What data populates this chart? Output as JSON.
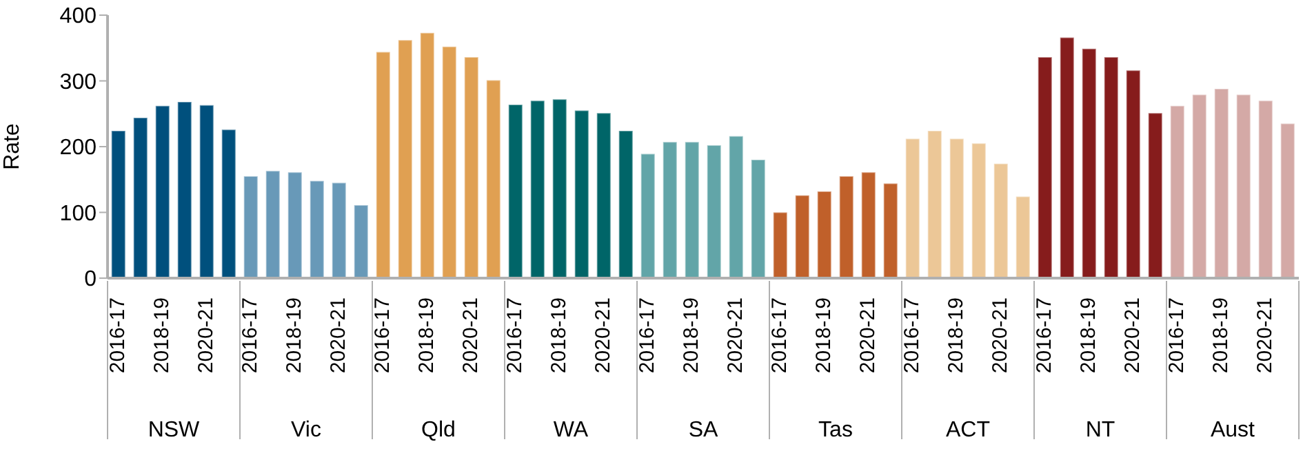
{
  "chart_data": {
    "type": "bar",
    "ylabel": "Rate",
    "ylim": [
      0,
      400
    ],
    "yticks": [
      0,
      100,
      200,
      300,
      400
    ],
    "grid": false,
    "annotations": [
      "NSW",
      "Vic",
      "Qld",
      "WA",
      "SA",
      "Tas",
      "ACT",
      "NT",
      "Aust"
    ],
    "categories": [
      "2016-17",
      null,
      "2018-19",
      null,
      "2020-21",
      null,
      "2016-17",
      null,
      "2018-19",
      null,
      "2020-21",
      null,
      "2016-17",
      null,
      "2018-19",
      null,
      "2020-21",
      null,
      "2016-17",
      null,
      "2018-19",
      null,
      "2020-21",
      null,
      "2016-17",
      null,
      "2018-19",
      null,
      "2020-21",
      null,
      "2016-17",
      null,
      "2018-19",
      null,
      "2020-21",
      null,
      "2016-17",
      null,
      "2018-19",
      null,
      "2020-21",
      null,
      "2016-17",
      null,
      "2018-19",
      null,
      "2020-21",
      null,
      "2016-17",
      null,
      "2018-19",
      null,
      "2020-21",
      null
    ],
    "series": [
      {
        "color": "#00507d",
        "values": [
          224,
          244,
          262,
          268,
          263,
          226,
          null,
          null,
          null,
          null,
          null,
          null,
          null,
          null,
          null,
          null,
          null,
          null,
          null,
          null,
          null,
          null,
          null,
          null,
          null,
          null,
          null,
          null,
          null,
          null,
          null,
          null,
          null,
          null,
          null,
          null,
          null,
          null,
          null,
          null,
          null,
          null,
          null,
          null,
          null,
          null,
          null,
          null,
          null,
          null,
          null,
          null,
          null,
          null
        ]
      },
      {
        "color": "#6899b8",
        "values": [
          null,
          null,
          null,
          null,
          null,
          null,
          155,
          163,
          161,
          148,
          145,
          111,
          null,
          null,
          null,
          null,
          null,
          null,
          null,
          null,
          null,
          null,
          null,
          null,
          null,
          null,
          null,
          null,
          null,
          null,
          null,
          null,
          null,
          null,
          null,
          null,
          null,
          null,
          null,
          null,
          null,
          null,
          null,
          null,
          null,
          null,
          null,
          null,
          null,
          null,
          null,
          null,
          null,
          null
        ]
      },
      {
        "color": "#e0a052",
        "values": [
          null,
          null,
          null,
          null,
          null,
          null,
          null,
          null,
          null,
          null,
          null,
          null,
          344,
          362,
          373,
          352,
          336,
          301,
          null,
          null,
          null,
          null,
          null,
          null,
          null,
          null,
          null,
          null,
          null,
          null,
          null,
          null,
          null,
          null,
          null,
          null,
          null,
          null,
          null,
          null,
          null,
          null,
          null,
          null,
          null,
          null,
          null,
          null,
          null,
          null,
          null,
          null,
          null,
          null
        ]
      },
      {
        "color": "#006568",
        "values": [
          null,
          null,
          null,
          null,
          null,
          null,
          null,
          null,
          null,
          null,
          null,
          null,
          null,
          null,
          null,
          null,
          null,
          null,
          264,
          270,
          272,
          255,
          251,
          224,
          null,
          null,
          null,
          null,
          null,
          null,
          null,
          null,
          null,
          null,
          null,
          null,
          null,
          null,
          null,
          null,
          null,
          null,
          null,
          null,
          null,
          null,
          null,
          null,
          null,
          null,
          null,
          null,
          null,
          null
        ]
      },
      {
        "color": "#62a5a8",
        "values": [
          null,
          null,
          null,
          null,
          null,
          null,
          null,
          null,
          null,
          null,
          null,
          null,
          null,
          null,
          null,
          null,
          null,
          null,
          null,
          null,
          null,
          null,
          null,
          null,
          189,
          207,
          207,
          202,
          216,
          180,
          null,
          null,
          null,
          null,
          null,
          null,
          null,
          null,
          null,
          null,
          null,
          null,
          null,
          null,
          null,
          null,
          null,
          null,
          null,
          null,
          null,
          null,
          null,
          null
        ]
      },
      {
        "color": "#c0602a",
        "values": [
          null,
          null,
          null,
          null,
          null,
          null,
          null,
          null,
          null,
          null,
          null,
          null,
          null,
          null,
          null,
          null,
          null,
          null,
          null,
          null,
          null,
          null,
          null,
          null,
          null,
          null,
          null,
          null,
          null,
          null,
          100,
          126,
          132,
          155,
          161,
          144,
          null,
          null,
          null,
          null,
          null,
          null,
          null,
          null,
          null,
          null,
          null,
          null,
          null,
          null,
          null,
          null,
          null,
          null
        ]
      },
      {
        "color": "#ecc797",
        "values": [
          null,
          null,
          null,
          null,
          null,
          null,
          null,
          null,
          null,
          null,
          null,
          null,
          null,
          null,
          null,
          null,
          null,
          null,
          null,
          null,
          null,
          null,
          null,
          null,
          null,
          null,
          null,
          null,
          null,
          null,
          null,
          null,
          null,
          null,
          null,
          null,
          212,
          224,
          212,
          205,
          174,
          124,
          null,
          null,
          null,
          null,
          null,
          null,
          null,
          null,
          null,
          null,
          null,
          null
        ]
      },
      {
        "color": "#861c1c",
        "values": [
          null,
          null,
          null,
          null,
          null,
          null,
          null,
          null,
          null,
          null,
          null,
          null,
          null,
          null,
          null,
          null,
          null,
          null,
          null,
          null,
          null,
          null,
          null,
          null,
          null,
          null,
          null,
          null,
          null,
          null,
          null,
          null,
          null,
          null,
          null,
          null,
          null,
          null,
          null,
          null,
          null,
          null,
          336,
          366,
          349,
          336,
          316,
          251,
          null,
          null,
          null,
          null,
          null,
          null
        ]
      },
      {
        "color": "#d4a9a6",
        "values": [
          null,
          null,
          null,
          null,
          null,
          null,
          null,
          null,
          null,
          null,
          null,
          null,
          null,
          null,
          null,
          null,
          null,
          null,
          null,
          null,
          null,
          null,
          null,
          null,
          null,
          null,
          null,
          null,
          null,
          null,
          null,
          null,
          null,
          null,
          null,
          null,
          null,
          null,
          null,
          null,
          null,
          null,
          null,
          null,
          null,
          null,
          null,
          null,
          262,
          279,
          288,
          279,
          270,
          235
        ]
      }
    ]
  }
}
